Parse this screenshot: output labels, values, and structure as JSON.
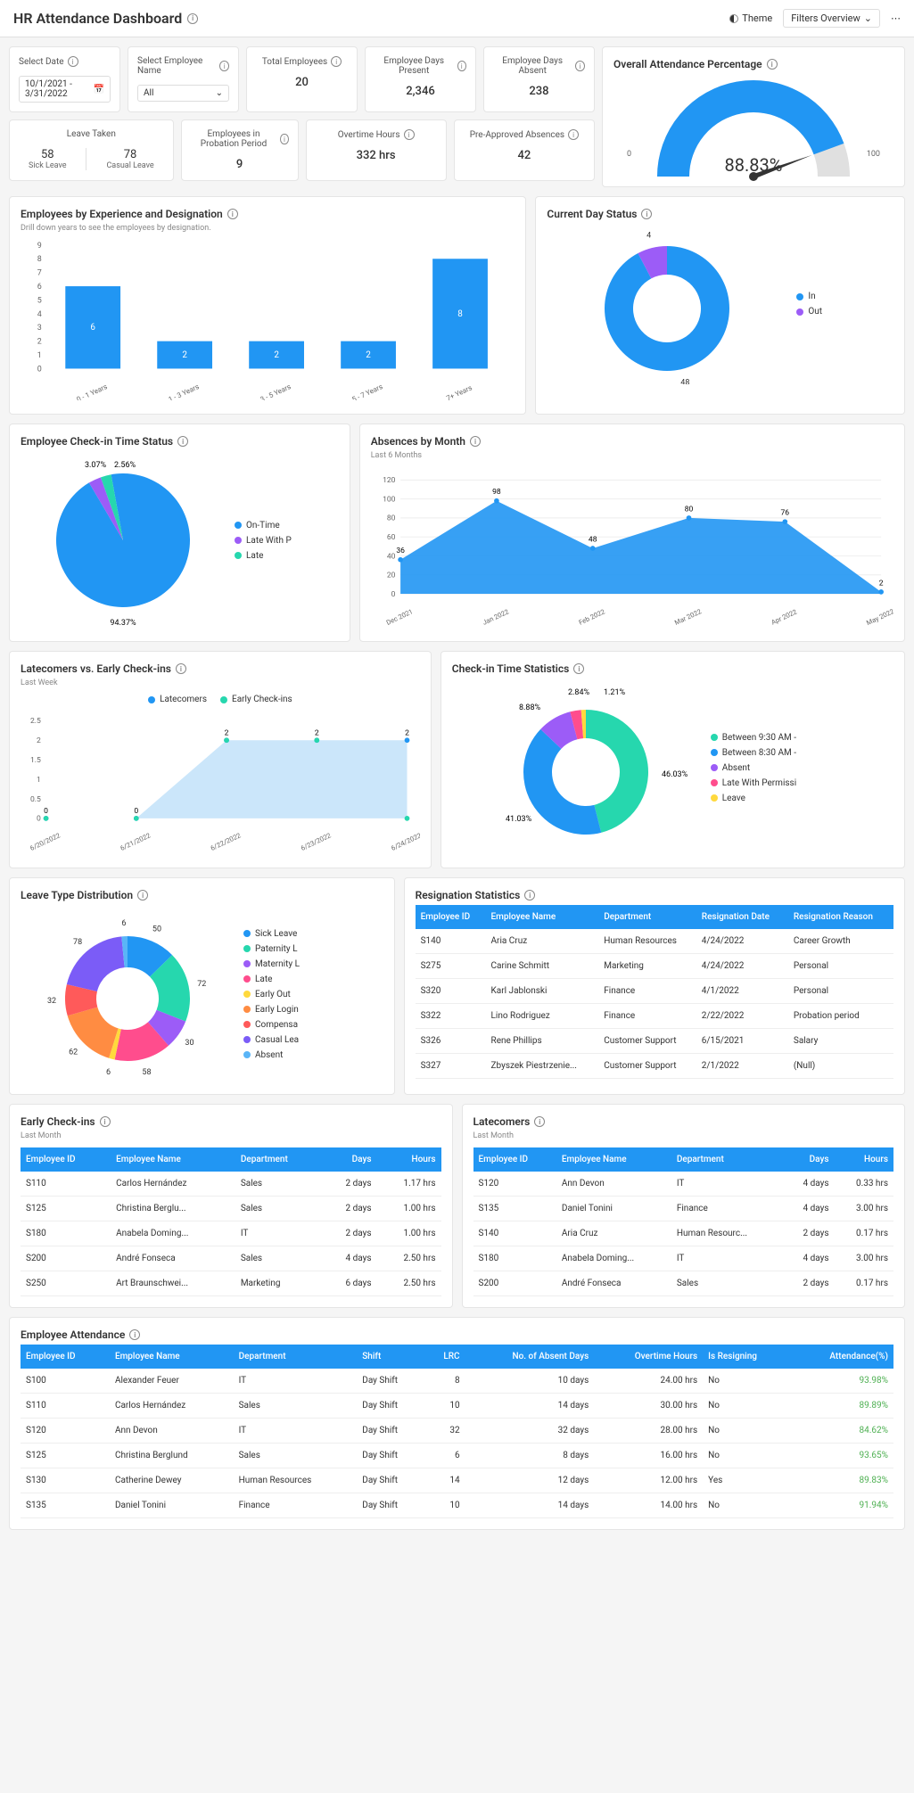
{
  "header": {
    "title": "HR Attendance Dashboard",
    "theme": "Theme",
    "filters": "Filters Overview"
  },
  "filters": {
    "date_label": "Select Date",
    "date_value": "10/1/2021 - 3/31/2022",
    "emp_label": "Select Employee Name",
    "emp_value": "All"
  },
  "kpi": {
    "total_emp_label": "Total Employees",
    "total_emp": "20",
    "days_present_label": "Employee Days Present",
    "days_present": "2,346",
    "days_absent_label": "Employee Days Absent",
    "days_absent": "238",
    "leave_label": "Leave Taken",
    "sick_n": "58",
    "sick_l": "Sick Leave",
    "casual_n": "78",
    "casual_l": "Casual Leave",
    "probation_label": "Employees in Probation Period",
    "probation": "9",
    "ot_label": "Overtime Hours",
    "ot": "332 hrs",
    "preapp_label": "Pre-Approved Absences",
    "preapp": "42"
  },
  "gauge": {
    "title": "Overall Attendance Percentage",
    "value": 88.83,
    "display": "88.83%",
    "min": "0",
    "max": "100",
    "fill_color": "#2196f3",
    "bg_color": "#e0e0e0"
  },
  "bar_exp": {
    "title": "Employees by Experience and Designation",
    "subtitle": "Drill down years to see the employees by designation.",
    "categories": [
      "0 - 1 Years",
      "1 - 3 Years",
      "3 - 5 Years",
      "5 - 7 Years",
      "7+ Years"
    ],
    "values": [
      6,
      2,
      2,
      2,
      8
    ],
    "ymax": 9,
    "color": "#2196f3"
  },
  "donut_status": {
    "title": "Current Day Status",
    "data": [
      {
        "label": "In",
        "value": 48,
        "color": "#2196f3"
      },
      {
        "label": "Out",
        "value": 4,
        "color": "#9c5cf7"
      }
    ]
  },
  "pie_checkin": {
    "title": "Employee Check-in Time Status",
    "data": [
      {
        "label": "On-Time",
        "value": 94.37,
        "color": "#2196f3"
      },
      {
        "label": "Late With P",
        "value": 3.07,
        "color": "#9c5cf7"
      },
      {
        "label": "Late",
        "value": 2.56,
        "color": "#26d7ae"
      }
    ],
    "label_top1": "3.07%",
    "label_top2": "2.56%",
    "label_bot": "94.37%"
  },
  "area_abs": {
    "title": "Absences by Month",
    "subtitle": "Last 6 Months",
    "x": [
      "Dec 2021",
      "Jan 2022",
      "Feb 2022",
      "Mar 2022",
      "Apr 2022",
      "May 2022"
    ],
    "y": [
      36,
      98,
      48,
      80,
      76,
      2
    ],
    "ymax": 120,
    "color": "#2196f3"
  },
  "area_late": {
    "title": "Latecomers vs. Early Check-ins",
    "subtitle": "Last Week",
    "legend": [
      {
        "label": "Latecomers",
        "color": "#2196f3"
      },
      {
        "label": "Early Check-ins",
        "color": "#26d7ae"
      }
    ],
    "x": [
      "6/20/2022",
      "6/21/2022",
      "6/22/2022",
      "6/23/2022",
      "6/24/2022"
    ],
    "late": [
      0,
      0,
      2,
      2,
      2
    ],
    "early": [
      0,
      0,
      2,
      2,
      0
    ],
    "ymax": 2.5,
    "bg": "#a8d5f7"
  },
  "donut_stats": {
    "title": "Check-in Time Statistics",
    "data": [
      {
        "label": "Between 9:30 AM -",
        "value": 46.03,
        "color": "#26d7ae"
      },
      {
        "label": "Between 8:30 AM -",
        "value": 41.03,
        "color": "#2196f3"
      },
      {
        "label": "Absent",
        "value": 8.88,
        "color": "#9c5cf7"
      },
      {
        "label": "Late With Permissi",
        "value": 2.84,
        "color": "#ff4d8d"
      },
      {
        "label": "Leave",
        "value": 1.21,
        "color": "#ffd93d"
      }
    ],
    "lbl1": "46.03%",
    "lbl2": "41.03%",
    "lbl3": "8.88%",
    "lbl4": "2.84%",
    "lbl5": "1.21%"
  },
  "donut_leave": {
    "title": "Leave Type Distribution",
    "data": [
      {
        "label": "Sick Leave",
        "value": 50,
        "color": "#2196f3"
      },
      {
        "label": "Paternity L",
        "value": 72,
        "color": "#26d7ae"
      },
      {
        "label": "Maternity L",
        "value": 30,
        "color": "#9c5cf7"
      },
      {
        "label": "Late",
        "value": 58,
        "color": "#ff4d8d"
      },
      {
        "label": "Early Out",
        "value": 6,
        "color": "#ffd93d"
      },
      {
        "label": "Early Login",
        "value": 62,
        "color": "#ff8c42"
      },
      {
        "label": "Compensa",
        "value": 32,
        "color": "#ff5a5a"
      },
      {
        "label": "Casual Lea",
        "value": 78,
        "color": "#7b5cf7"
      },
      {
        "label": "Absent",
        "value": 6,
        "color": "#5ab5f7"
      }
    ],
    "labels_pos": [
      "50",
      "72",
      "30",
      "58",
      "6",
      "62",
      "32",
      "78",
      "6"
    ]
  },
  "resign": {
    "title": "Resignation Statistics",
    "cols": [
      "Employee ID",
      "Employee Name",
      "Department",
      "Resignation Date",
      "Resignation Reason"
    ],
    "rows": [
      [
        "S140",
        "Aria Cruz",
        "Human Resources",
        "4/24/2022",
        "Career Growth"
      ],
      [
        "S275",
        "Carine Schmitt",
        "Marketing",
        "4/24/2022",
        "Personal"
      ],
      [
        "S320",
        "Karl Jablonski",
        "Finance",
        "4/1/2022",
        "Personal"
      ],
      [
        "S322",
        "Lino Rodriguez",
        "Finance",
        "2/22/2022",
        "Probation period"
      ],
      [
        "S326",
        "Rene Phillips",
        "Customer Support",
        "6/15/2021",
        "Salary"
      ],
      [
        "S327",
        "Zbyszek Piestrzenie...",
        "Customer Support",
        "2/1/2022",
        "(Null)"
      ]
    ]
  },
  "early": {
    "title": "Early Check-ins",
    "subtitle": "Last Month",
    "cols": [
      "Employee ID",
      "Employee Name",
      "Department",
      "Days",
      "Hours"
    ],
    "rows": [
      [
        "S110",
        "Carlos Hernández",
        "Sales",
        "2 days",
        "1.17 hrs"
      ],
      [
        "S125",
        "Christina Berglu...",
        "Sales",
        "2 days",
        "1.00 hrs"
      ],
      [
        "S180",
        "Anabela Doming...",
        "IT",
        "2 days",
        "1.00 hrs"
      ],
      [
        "S200",
        "André Fonseca",
        "Sales",
        "4 days",
        "2.50 hrs"
      ],
      [
        "S250",
        "Art Braunschwei...",
        "Marketing",
        "6 days",
        "2.50 hrs"
      ]
    ]
  },
  "late_t": {
    "title": "Latecomers",
    "subtitle": "Last Month",
    "cols": [
      "Employee ID",
      "Employee Name",
      "Department",
      "Days",
      "Hours"
    ],
    "rows": [
      [
        "S120",
        "Ann Devon",
        "IT",
        "4 days",
        "0.33 hrs"
      ],
      [
        "S135",
        "Daniel Tonini",
        "Finance",
        "4 days",
        "3.00 hrs"
      ],
      [
        "S140",
        "Aria Cruz",
        "Human Resourc...",
        "2 days",
        "0.17 hrs"
      ],
      [
        "S180",
        "Anabela Doming...",
        "IT",
        "4 days",
        "3.00 hrs"
      ],
      [
        "S200",
        "André Fonseca",
        "Sales",
        "2 days",
        "0.17 hrs"
      ]
    ]
  },
  "attend": {
    "title": "Employee Attendance",
    "cols": [
      "Employee ID",
      "Employee Name",
      "Department",
      "Shift",
      "LRC",
      "No. of Absent Days",
      "Overtime Hours",
      "Is Resigning",
      "Attendance(%)"
    ],
    "rows": [
      [
        "S100",
        "Alexander Feuer",
        "IT",
        "Day Shift",
        "8",
        "10 days",
        "24.00 hrs",
        "No",
        "93.98%"
      ],
      [
        "S110",
        "Carlos Hernández",
        "Sales",
        "Day Shift",
        "10",
        "14 days",
        "30.00 hrs",
        "No",
        "89.89%"
      ],
      [
        "S120",
        "Ann Devon",
        "IT",
        "Day Shift",
        "32",
        "32 days",
        "28.00 hrs",
        "No",
        "84.62%"
      ],
      [
        "S125",
        "Christina Berglund",
        "Sales",
        "Day Shift",
        "6",
        "8 days",
        "16.00 hrs",
        "No",
        "93.65%"
      ],
      [
        "S130",
        "Catherine Dewey",
        "Human Resources",
        "Day Shift",
        "14",
        "12 days",
        "12.00 hrs",
        "Yes",
        "89.83%"
      ],
      [
        "S135",
        "Daniel Tonini",
        "Finance",
        "Day Shift",
        "10",
        "14 days",
        "14.00 hrs",
        "No",
        "91.94%"
      ]
    ]
  }
}
